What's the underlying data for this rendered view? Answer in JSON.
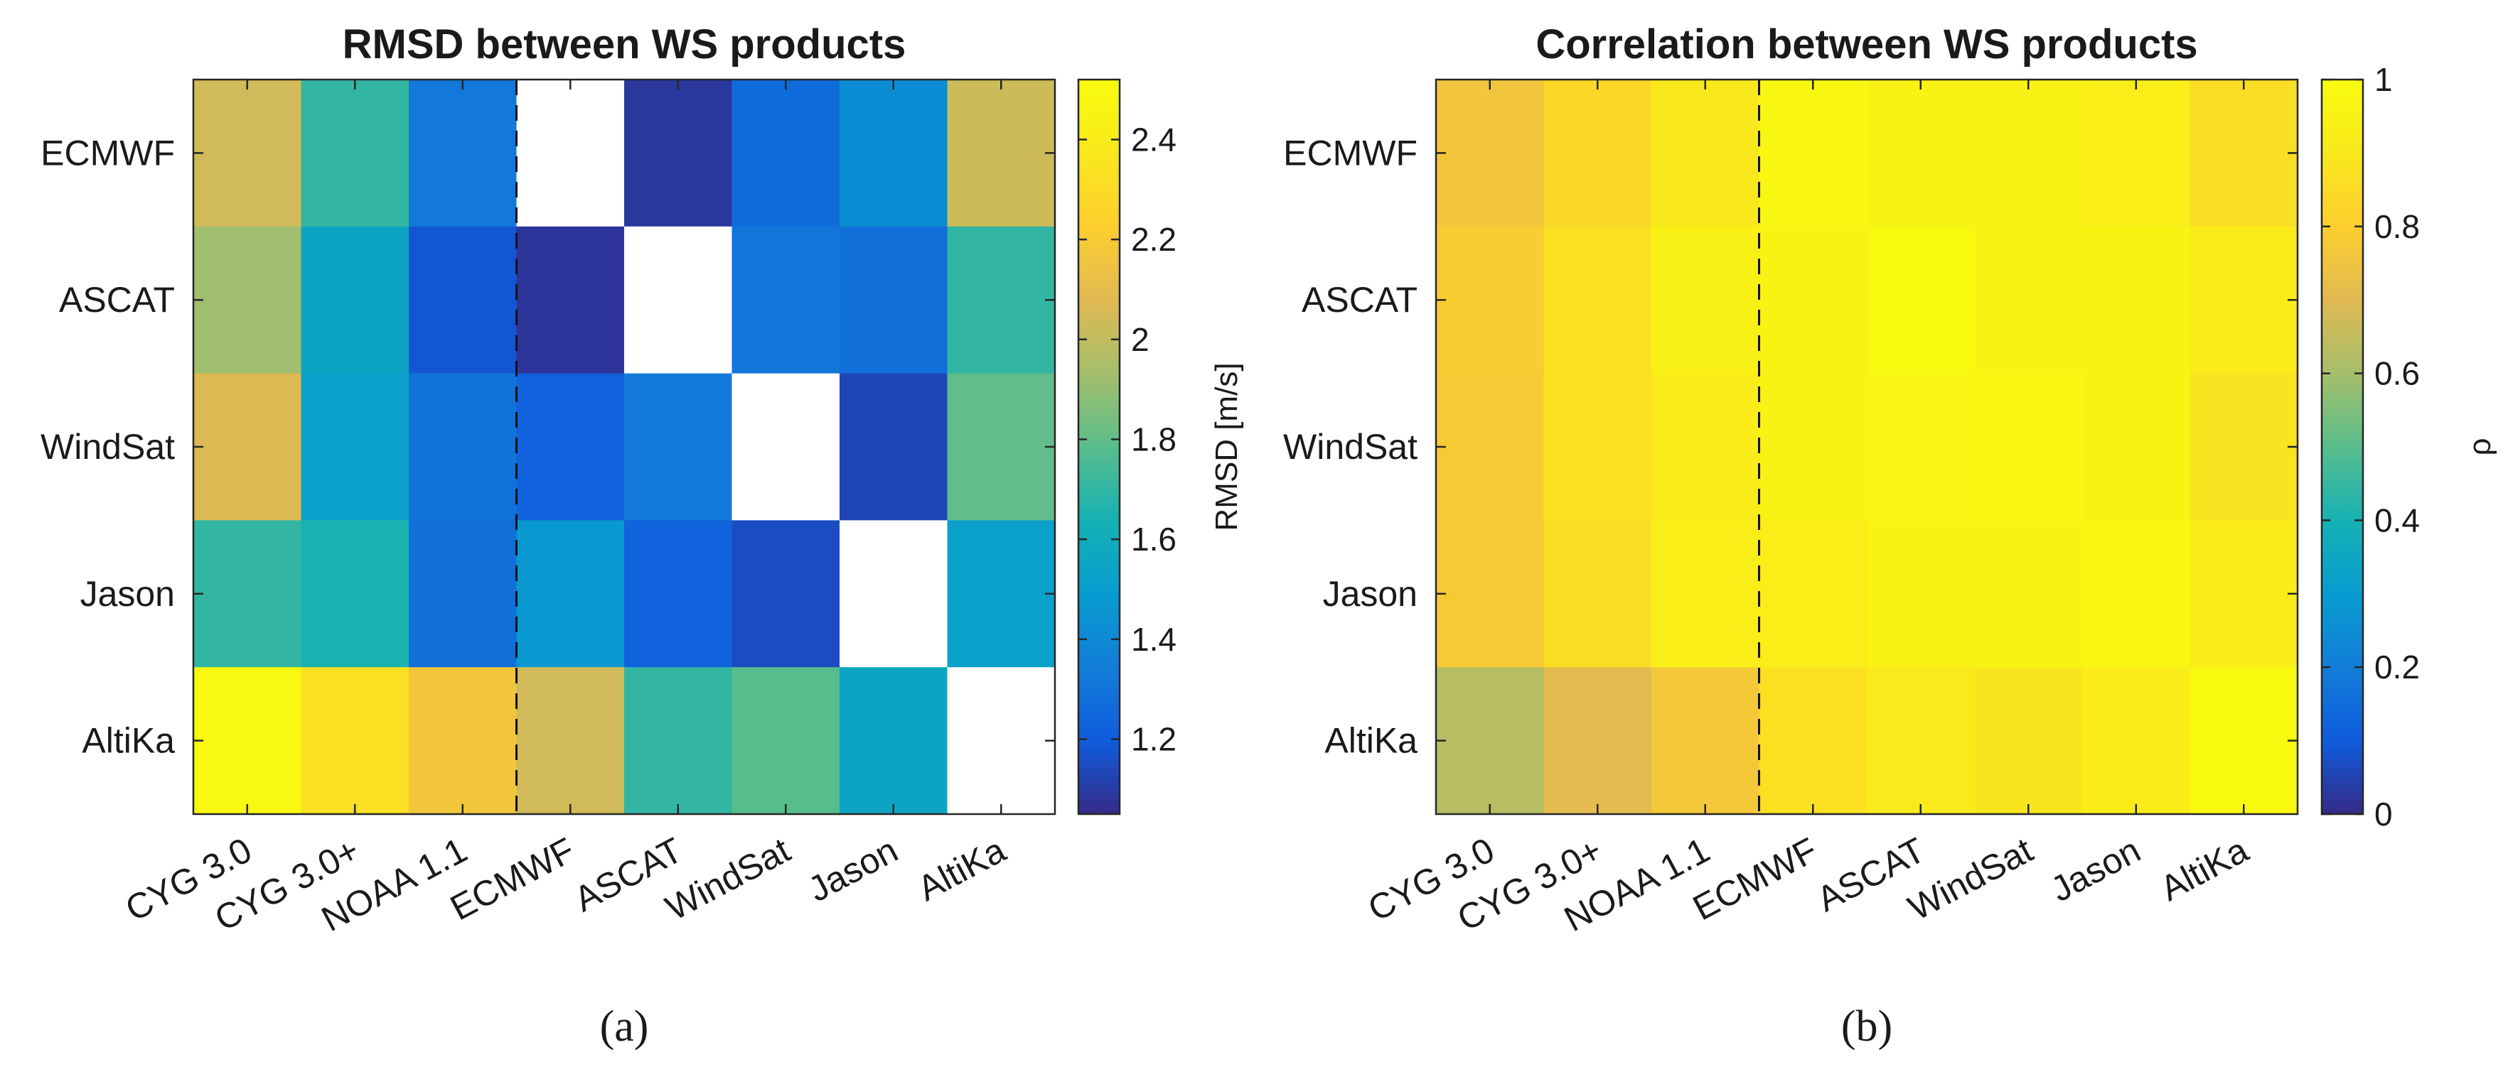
{
  "chart_data": [
    {
      "type": "heatmap",
      "title": "RMSD between WS products",
      "caption": "(a)",
      "x_categories": [
        "CYG 3.0",
        "CYG 3.0+",
        "NOAA 1.1",
        "ECMWF",
        "ASCAT",
        "WindSat",
        "Jason",
        "AltiKa"
      ],
      "y_categories": [
        "ECMWF",
        "ASCAT",
        "WindSat",
        "Jason",
        "AltiKa"
      ],
      "values": [
        [
          2.04,
          1.7,
          1.32,
          null,
          1.09,
          1.27,
          1.42,
          2.03
        ],
        [
          1.92,
          1.55,
          1.18,
          1.08,
          null,
          1.31,
          1.28,
          1.7
        ],
        [
          2.07,
          1.52,
          1.3,
          1.23,
          1.33,
          null,
          1.13,
          1.8
        ],
        [
          1.7,
          1.65,
          1.28,
          1.47,
          1.23,
          1.15,
          null,
          1.52
        ],
        [
          2.5,
          2.32,
          2.17,
          2.04,
          1.7,
          1.78,
          1.55,
          null
        ]
      ],
      "colorbar": {
        "min": 1.05,
        "max": 2.52,
        "ticks": [
          "1.2",
          "1.4",
          "1.6",
          "1.8",
          "2",
          "2.2",
          "2.4"
        ],
        "tick_values": [
          1.2,
          1.4,
          1.6,
          1.8,
          2.0,
          2.2,
          2.4
        ],
        "label": "RMSD [m/s]"
      },
      "divider_after_column": "NOAA 1.1",
      "colormap": "parula"
    },
    {
      "type": "heatmap",
      "title": "Correlation between WS products",
      "caption": "(b)",
      "x_categories": [
        "CYG 3.0",
        "CYG 3.0+",
        "NOAA 1.1",
        "ECMWF",
        "ASCAT",
        "WindSat",
        "Jason",
        "AltiKa"
      ],
      "y_categories": [
        "ECMWF",
        "ASCAT",
        "WindSat",
        "Jason",
        "AltiKa"
      ],
      "values": [
        [
          0.76,
          0.84,
          0.9,
          0.98,
          0.95,
          0.95,
          0.93,
          0.86
        ],
        [
          0.79,
          0.87,
          0.94,
          0.96,
          0.99,
          0.96,
          0.96,
          0.92
        ],
        [
          0.78,
          0.87,
          0.92,
          0.95,
          0.97,
          0.98,
          0.96,
          0.88
        ],
        [
          0.78,
          0.86,
          0.93,
          0.93,
          0.96,
          0.96,
          0.98,
          0.92
        ],
        [
          0.63,
          0.71,
          0.77,
          0.87,
          0.91,
          0.89,
          0.92,
          0.99
        ]
      ],
      "colorbar": {
        "min": 0,
        "max": 1,
        "ticks": [
          "0",
          "0.2",
          "0.4",
          "0.6",
          "0.8",
          "1"
        ],
        "tick_values": [
          0,
          0.2,
          0.4,
          0.6,
          0.8,
          1
        ],
        "label": "ρ"
      },
      "divider_after_column": "NOAA 1.1",
      "colormap": "parula"
    }
  ]
}
